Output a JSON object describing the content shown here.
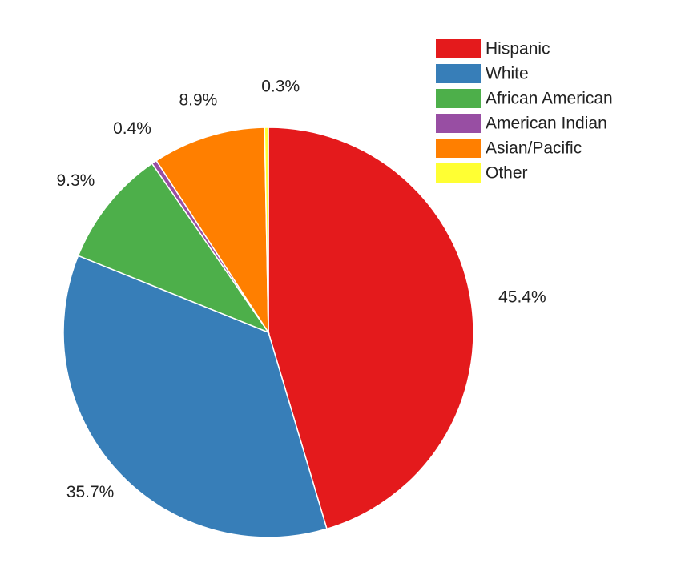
{
  "chart_data": {
    "type": "pie",
    "title": "",
    "legend_position": "top-right",
    "slices": [
      {
        "label": "Hispanic",
        "value": 45.4,
        "value_label": "45.4%",
        "color": "#e41a1c"
      },
      {
        "label": "White",
        "value": 35.7,
        "value_label": "35.7%",
        "color": "#377eb8"
      },
      {
        "label": "African American",
        "value": 9.3,
        "value_label": "9.3%",
        "color": "#4daf4a"
      },
      {
        "label": "American Indian",
        "value": 0.4,
        "value_label": "0.4%",
        "color": "#984ea3"
      },
      {
        "label": "Asian/Pacific",
        "value": 8.9,
        "value_label": "8.9%",
        "color": "#ff7f00"
      },
      {
        "label": "Other",
        "value": 0.3,
        "value_label": "0.3%",
        "color": "#ffff33"
      }
    ]
  }
}
